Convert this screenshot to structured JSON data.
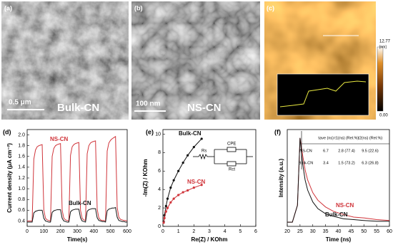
{
  "panels": [
    {
      "label": "(a)",
      "scale_bar": "0.5 μm",
      "caption": "Bulk-CN"
    },
    {
      "label": "(b)",
      "scale_bar": "100 nm",
      "caption": "NS-CN"
    },
    {
      "label": "(c)",
      "colorbar_max": "12.77",
      "colorbar_unit": "[nm]",
      "colorbar_min": "0.00"
    }
  ],
  "chart_data": [
    {
      "type": "line",
      "label": "(d)",
      "xlabel": "Time(s)",
      "ylabel": "Current density (μA cm⁻²)",
      "x": [
        0,
        10,
        20,
        30,
        40,
        50,
        60,
        70,
        80,
        90,
        100,
        110,
        120,
        130,
        140,
        150,
        160,
        170,
        180,
        190,
        200,
        210,
        220,
        230,
        240,
        250,
        260,
        270,
        280,
        290,
        300,
        310,
        320,
        330,
        340,
        350,
        360,
        370,
        380,
        390,
        400,
        410,
        420,
        430,
        440,
        450,
        460,
        470,
        480,
        490,
        500,
        510,
        520,
        530,
        540,
        550,
        560,
        570,
        580,
        590,
        600
      ],
      "series": [
        {
          "name": "NS-CN",
          "color": "#d0343a",
          "values": [
            0.4,
            0.4,
            0.4,
            0.4,
            1.55,
            1.72,
            1.78,
            1.8,
            1.81,
            1.82,
            0.6,
            0.45,
            0.42,
            0.41,
            0.4,
            1.6,
            1.75,
            1.8,
            1.82,
            1.83,
            1.84,
            0.6,
            0.45,
            0.42,
            0.41,
            0.4,
            1.62,
            1.78,
            1.82,
            1.84,
            1.85,
            1.86,
            0.6,
            0.45,
            0.42,
            0.41,
            1.65,
            1.8,
            1.85,
            1.87,
            1.88,
            1.89,
            0.62,
            0.46,
            0.42,
            0.41,
            0.41,
            0.4,
            1.7,
            1.85,
            1.9,
            1.93,
            1.95,
            1.97,
            0.65,
            0.47,
            0.43,
            0.42,
            0.41,
            0.41,
            0.4
          ]
        },
        {
          "name": "Bulk-CN",
          "color": "#111111",
          "values": [
            0.38,
            0.38,
            0.38,
            0.38,
            0.55,
            0.58,
            0.59,
            0.6,
            0.6,
            0.6,
            0.45,
            0.4,
            0.39,
            0.38,
            0.38,
            0.56,
            0.59,
            0.6,
            0.61,
            0.61,
            0.61,
            0.45,
            0.4,
            0.39,
            0.38,
            0.38,
            0.57,
            0.6,
            0.61,
            0.62,
            0.62,
            0.62,
            0.46,
            0.4,
            0.39,
            0.38,
            0.58,
            0.61,
            0.62,
            0.63,
            0.63,
            0.63,
            0.46,
            0.41,
            0.4,
            0.39,
            0.39,
            0.38,
            0.59,
            0.62,
            0.63,
            0.64,
            0.64,
            0.65,
            0.47,
            0.41,
            0.4,
            0.39,
            0.39,
            0.38,
            0.38
          ]
        }
      ],
      "xlim": [
        0,
        600
      ],
      "xticks": [
        0,
        100,
        200,
        300,
        400,
        500,
        600
      ],
      "ylim": [
        0.3,
        2.1
      ],
      "yticks": [
        0.4,
        0.6,
        0.8,
        {
          "value": 1,
          "label": "1.0"
        },
        1.2,
        1.4,
        1.6,
        1.8,
        {
          "value": 2,
          "label": "2.0"
        }
      ]
    },
    {
      "type": "line",
      "label": "(e)",
      "xlabel": "Re(Z) / KOhm",
      "ylabel": "-Im(Z) / KOhm",
      "markers": true,
      "series": [
        {
          "name": "Bulk-CN",
          "color": "#111111",
          "x": [
            0.05,
            0.1,
            0.2,
            0.3,
            0.5,
            0.7,
            1.0,
            1.3,
            1.6,
            2.0,
            2.5
          ],
          "values": [
            0.5,
            1.2,
            2.2,
            3.0,
            4.2,
            5.0,
            6.0,
            6.9,
            7.7,
            8.6,
            9.5
          ]
        },
        {
          "name": "NS-CN",
          "color": "#d0343a",
          "x": [
            0.05,
            0.1,
            0.2,
            0.3,
            0.5,
            0.7,
            1.0,
            1.3,
            1.6,
            2.0,
            2.5
          ],
          "values": [
            0.4,
            0.9,
            1.6,
            2.0,
            2.6,
            3.0,
            3.4,
            3.7,
            3.9,
            4.2,
            4.5
          ]
        }
      ],
      "xlim": [
        0,
        6
      ],
      "xticks": [
        0,
        1,
        2,
        3,
        4,
        5,
        6
      ],
      "ylim": [
        0,
        10.5
      ],
      "yticks": [
        0,
        2,
        4,
        6,
        8,
        10
      ],
      "inset": {
        "labels": [
          "Rs",
          "CPE",
          "Rct"
        ]
      }
    },
    {
      "type": "line",
      "label": "(f)",
      "xlabel": "Time (ns)",
      "ylabel": "Intensity (a.u.)",
      "x": [
        20,
        22,
        24,
        25,
        26,
        27,
        28,
        30,
        32,
        35,
        38,
        42,
        46,
        50,
        55,
        60
      ],
      "series": [
        {
          "name": "NS-CN",
          "color": "#d0343a",
          "values": [
            0,
            0,
            0.2,
            1.0,
            0.8,
            0.62,
            0.5,
            0.35,
            0.26,
            0.18,
            0.13,
            0.09,
            0.06,
            0.05,
            0.03,
            0.02
          ]
        },
        {
          "name": "Bulk-CN",
          "color": "#111111",
          "values": [
            0,
            0,
            0.2,
            1.0,
            0.7,
            0.5,
            0.38,
            0.24,
            0.16,
            0.1,
            0.07,
            0.04,
            0.03,
            0.02,
            0.01,
            0.01
          ]
        }
      ],
      "xlim": [
        20,
        60
      ],
      "xticks": [
        20,
        25,
        30,
        35,
        40,
        45,
        50,
        55,
        60
      ],
      "ylim": [
        -0.05,
        1.1
      ],
      "table": {
        "columns": [
          "τave (ns)",
          "τ1(ns) (Rel.%)",
          "τ2(ns) (Rel.%)"
        ],
        "rows": [
          [
            "NS-CN",
            "6.7",
            "2.8 (77.4)",
            "9.5 (22.6)"
          ],
          [
            "Bulk-CN",
            "3.4",
            "1.5 (73.2)",
            "6.3 (26.8)"
          ]
        ]
      }
    }
  ]
}
